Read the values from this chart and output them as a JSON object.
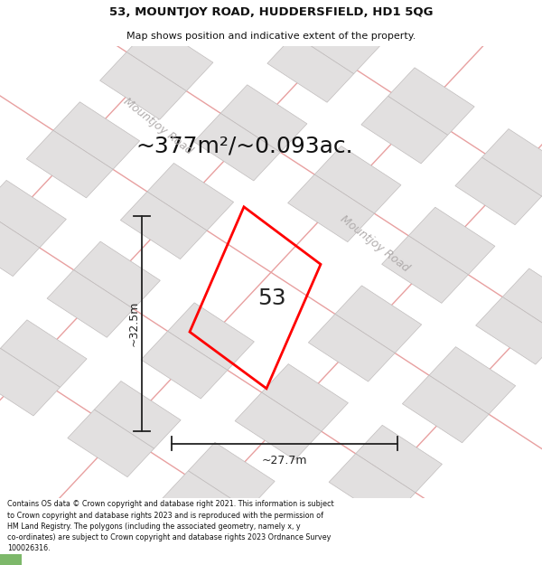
{
  "title_line1": "53, MOUNTJOY ROAD, HUDDERSFIELD, HD1 5QG",
  "title_line2": "Map shows position and indicative extent of the property.",
  "area_text": "~377m²/~0.093ac.",
  "number_label": "53",
  "dim_width": "~27.7m",
  "dim_height": "~32.5m",
  "road_label_top": "Mountjoy Road",
  "road_label_right": "Mountjoy Road",
  "footer_text": "Contains OS data © Crown copyright and database right 2021. This information is subject to Crown copyright and database rights 2023 and is reproduced with the permission of HM Land Registry. The polygons (including the associated geometry, namely x, y co-ordinates) are subject to Crown copyright and database rights 2023 Ordnance Survey 100026316.",
  "map_bg": "#f7f4f4",
  "title_bg": "#ffffff",
  "footer_bg": "#ffffff",
  "property_color": "#ff0000",
  "building_fill": "#e2e0e0",
  "building_edge": "#c0bcbc",
  "road_line_color": "#e8a0a0",
  "dim_line_color": "#222222",
  "road_label_color": "#b0acac",
  "title_fontsize": 9.5,
  "subtitle_fontsize": 8,
  "area_fontsize": 18,
  "label_fontsize": 18,
  "dim_fontsize": 9,
  "road_fontsize": 9
}
